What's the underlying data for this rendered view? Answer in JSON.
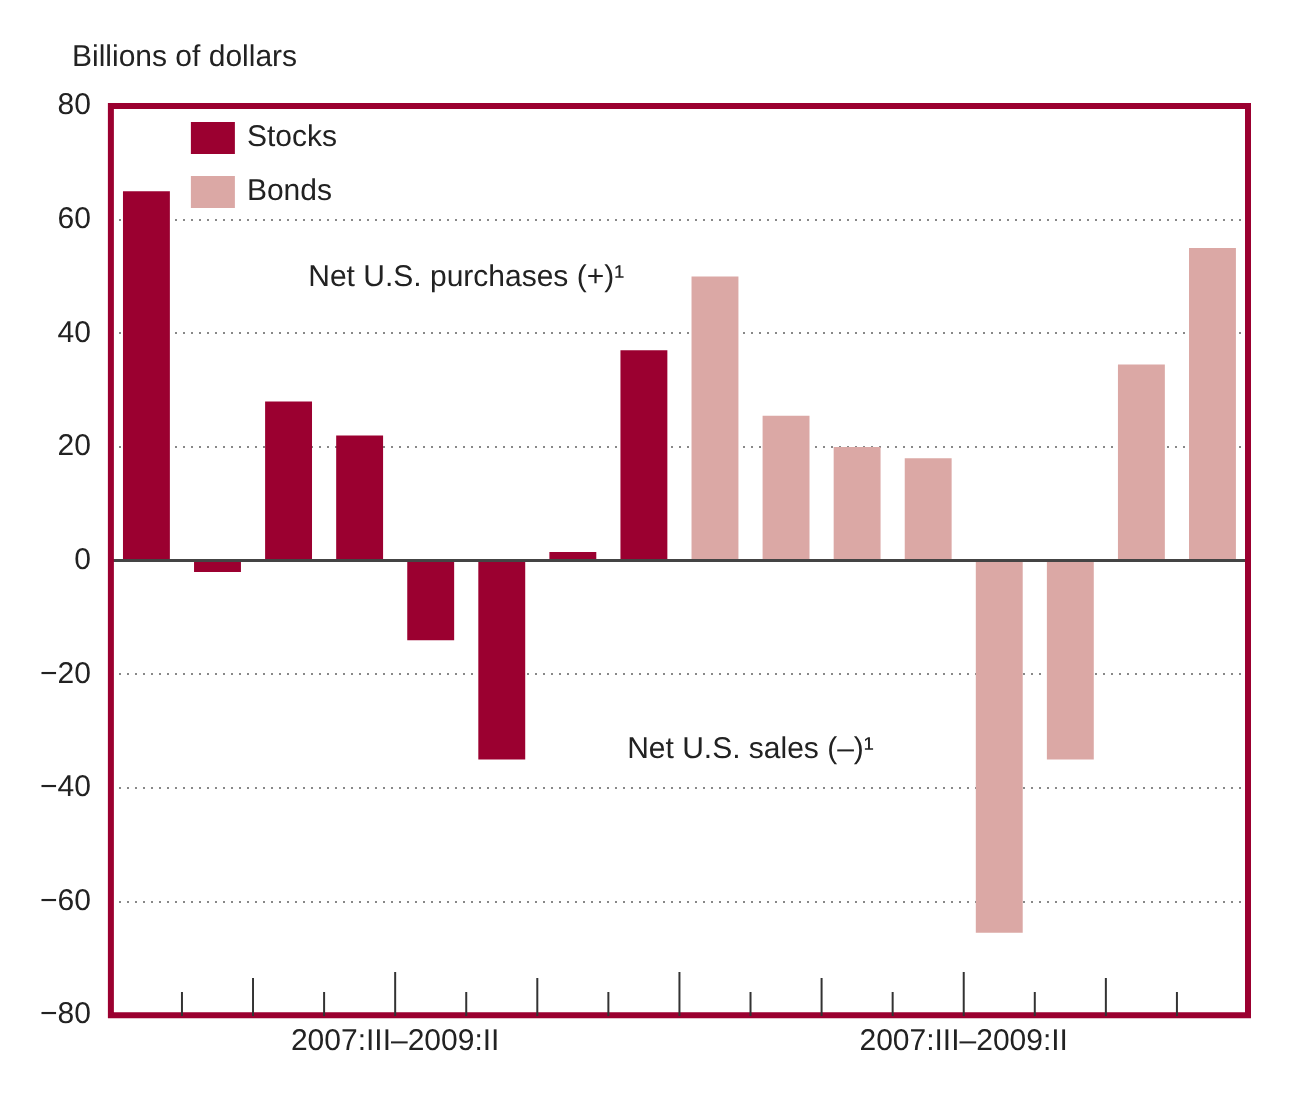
{
  "chart_data": {
    "type": "bar",
    "ylabel": "Billions of dollars",
    "categories": [
      null,
      null,
      null,
      null,
      null,
      null,
      null,
      null,
      null,
      null,
      null,
      null,
      null,
      null,
      null,
      null
    ],
    "series": [
      {
        "name": "Stocks",
        "color": "#9b0030",
        "values": [
          65,
          -2,
          28,
          22,
          -14,
          -35,
          1.5,
          37,
          null,
          null,
          null,
          null,
          null,
          null,
          null,
          null
        ]
      },
      {
        "name": "Bonds",
        "color": "#dba8a5",
        "values": [
          null,
          null,
          null,
          null,
          null,
          null,
          null,
          null,
          50,
          25.5,
          20,
          18,
          -65.5,
          -35,
          34.5,
          55
        ]
      }
    ],
    "ylim": [
      -80,
      80
    ],
    "yticks": [
      -80,
      -60,
      -40,
      -20,
      0,
      20,
      40,
      60,
      80
    ],
    "grid": "y",
    "legend": "top left",
    "annotations": [
      "Net U.S. purchases (+)¹",
      "Net U.S. sales (–)¹",
      "2007:III–2009:II",
      "2007:III–2009:II"
    ]
  }
}
